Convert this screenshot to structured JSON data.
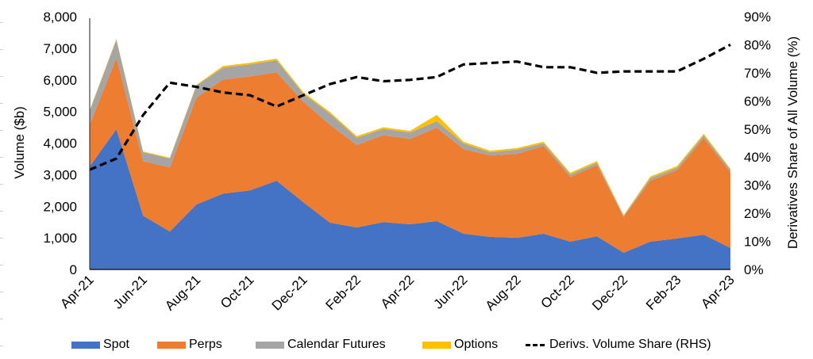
{
  "chart_data": {
    "type": "area",
    "stacked": true,
    "title": "",
    "xlabel": "",
    "ylabel": "Volume ($b)",
    "y2label": "Derivatives Share of All Volume (%)",
    "ylim": [
      0,
      8000
    ],
    "y2lim": [
      0,
      90
    ],
    "yticks": [
      "0",
      "1,000",
      "2,000",
      "3,000",
      "4,000",
      "5,000",
      "6,000",
      "7,000",
      "8,000"
    ],
    "y2ticks": [
      "0%",
      "10%",
      "20%",
      "30%",
      "40%",
      "50%",
      "60%",
      "70%",
      "80%",
      "90%"
    ],
    "categories": [
      "Apr-21",
      "May-21",
      "Jun-21",
      "Jul-21",
      "Aug-21",
      "Sep-21",
      "Oct-21",
      "Nov-21",
      "Dec-21",
      "Jan-22",
      "Feb-22",
      "Mar-22",
      "Apr-22",
      "May-22",
      "Jun-22",
      "Jul-22",
      "Aug-22",
      "Sep-22",
      "Oct-22",
      "Nov-22",
      "Dec-22",
      "Jan-23",
      "Feb-23",
      "Mar-23",
      "Apr-23"
    ],
    "xtick_labels": [
      "Apr-21",
      "Jun-21",
      "Aug-21",
      "Oct-21",
      "Dec-21",
      "Feb-22",
      "Apr-22",
      "Jun-22",
      "Aug-22",
      "Oct-22",
      "Dec-22",
      "Feb-23",
      "Apr-23"
    ],
    "grid": false,
    "legend_position": "bottom",
    "series": [
      {
        "name": "Spot",
        "color": "#4472C4",
        "axis": "left",
        "kind": "area",
        "values": [
          3260,
          4440,
          1700,
          1200,
          2060,
          2400,
          2500,
          2810,
          2130,
          1480,
          1330,
          1500,
          1430,
          1530,
          1130,
          1030,
          1000,
          1130,
          880,
          1050,
          530,
          880,
          980,
          1100,
          680
        ]
      },
      {
        "name": "Perps",
        "color": "#ED7D31",
        "axis": "left",
        "kind": "area",
        "values": [
          1330,
          2250,
          1730,
          2030,
          3380,
          3610,
          3610,
          3430,
          3180,
          3100,
          2610,
          2750,
          2700,
          2960,
          2680,
          2580,
          2660,
          2780,
          2050,
          2250,
          1130,
          1930,
          2160,
          3060,
          2400
        ]
      },
      {
        "name": "Calendar Futures",
        "color": "#A5A5A5",
        "axis": "left",
        "kind": "area",
        "values": [
          430,
          580,
          280,
          280,
          380,
          380,
          380,
          380,
          250,
          350,
          230,
          200,
          200,
          200,
          180,
          100,
          130,
          80,
          80,
          80,
          30,
          80,
          80,
          80,
          80
        ]
      },
      {
        "name": "Options",
        "color": "#FFC000",
        "axis": "left",
        "kind": "area",
        "values": [
          25,
          25,
          25,
          25,
          25,
          50,
          50,
          50,
          50,
          50,
          50,
          50,
          50,
          200,
          50,
          50,
          50,
          50,
          50,
          50,
          25,
          50,
          50,
          50,
          25
        ]
      },
      {
        "name": "Derivs. Volume Share (RHS)",
        "color": "#000000",
        "axis": "right",
        "kind": "line",
        "dash": true,
        "values": [
          35.5,
          39.5,
          55,
          66.5,
          65,
          63,
          62,
          58,
          62,
          66,
          68.5,
          67,
          67.5,
          68.5,
          73,
          73.5,
          74,
          72,
          72,
          70,
          70.5,
          70.5,
          70.5,
          75,
          80
        ]
      }
    ]
  },
  "legend": [
    {
      "label": "Spot",
      "color": "#4472C4",
      "type": "area"
    },
    {
      "label": "Perps",
      "color": "#ED7D31",
      "type": "area"
    },
    {
      "label": "Calendar Futures",
      "color": "#A5A5A5",
      "type": "area"
    },
    {
      "label": "Options",
      "color": "#FFC000",
      "type": "area"
    },
    {
      "label": "Derivs. Volume Share (RHS)",
      "color": "#000000",
      "type": "dashed-line"
    }
  ]
}
